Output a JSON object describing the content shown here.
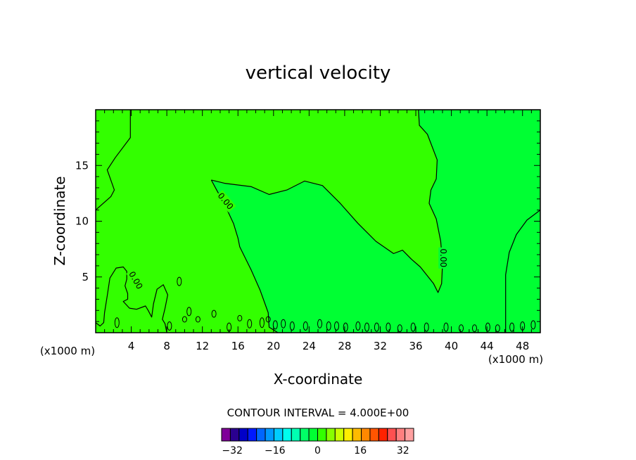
{
  "chart_data": {
    "type": "contour",
    "title": "vertical velocity",
    "xlabel": "X-coordinate",
    "ylabel": "Z-coordinate",
    "x_unit": "(x1000 m)",
    "y_unit": "(x1000 m)",
    "xlim": [
      0,
      50
    ],
    "ylim": [
      0,
      20
    ],
    "x_ticks": [
      4,
      8,
      12,
      16,
      20,
      24,
      28,
      32,
      36,
      40,
      44,
      48
    ],
    "y_ticks": [
      5,
      10,
      15
    ],
    "contour_interval_text": "CONTOUR INTERVAL = 4.000E+00",
    "contour_label": "0.00",
    "colorbar": {
      "min": -36,
      "max": 36,
      "step": 4,
      "tick_values": [
        -32,
        -16,
        0,
        16,
        32
      ],
      "tick_labels": [
        "−32",
        "−16",
        "0",
        "16",
        "32"
      ],
      "colors": [
        "#7f0099",
        "#2a008f",
        "#0000c8",
        "#0019ff",
        "#0066ff",
        "#0099ff",
        "#00ccff",
        "#00ffee",
        "#00ffb2",
        "#00ff66",
        "#00ff33",
        "#33ff00",
        "#88ff00",
        "#ccff00",
        "#ffee00",
        "#ffbb00",
        "#ff8800",
        "#ff5500",
        "#ff2200",
        "#ff5050",
        "#ff7f7f",
        "#ffa0a0"
      ]
    },
    "fill_colors": {
      "positive_small": "#33ff00",
      "negative_small": "#00ff33"
    },
    "zero_contours": [
      {
        "region": "negative",
        "points": [
          [
            13,
            13.7
          ],
          [
            14.5,
            13.4
          ],
          [
            17.5,
            13.1
          ],
          [
            19.5,
            12.4
          ],
          [
            21.5,
            12.8
          ],
          [
            23.5,
            13.6
          ],
          [
            25.5,
            13.2
          ],
          [
            27.5,
            11.6
          ],
          [
            29.5,
            9.8
          ],
          [
            31.5,
            8.2
          ],
          [
            33.5,
            7.1
          ],
          [
            34.5,
            7.4
          ],
          [
            35.5,
            6.6
          ],
          [
            36.5,
            5.9
          ],
          [
            38,
            4.4
          ],
          [
            38.5,
            3.6
          ],
          [
            38.9,
            4.4
          ],
          [
            39,
            6.2
          ],
          [
            38.8,
            8.2
          ],
          [
            38.3,
            10.2
          ],
          [
            37.5,
            11.6
          ],
          [
            37.7,
            12.8
          ],
          [
            38.3,
            13.8
          ],
          [
            38.4,
            15.5
          ],
          [
            37.3,
            17.8
          ],
          [
            36.4,
            18.6
          ],
          [
            36.3,
            20
          ],
          [
            50,
            20
          ],
          [
            50,
            0
          ],
          [
            40,
            0
          ],
          [
            30,
            0
          ],
          [
            20.5,
            0
          ],
          [
            19.5,
            0.5
          ],
          [
            19.4,
            1.8
          ],
          [
            18.5,
            3.8
          ],
          [
            17.5,
            5.6
          ],
          [
            16.2,
            7.7
          ],
          [
            16,
            8.5
          ],
          [
            15.5,
            9.8
          ],
          [
            14.5,
            11.5
          ],
          [
            13.6,
            12.8
          ],
          [
            13,
            13.7
          ]
        ]
      },
      {
        "region": "positive",
        "points": [
          [
            3.9,
            20
          ],
          [
            3.9,
            17.5
          ],
          [
            2.2,
            15.7
          ],
          [
            1.3,
            14.6
          ],
          [
            1.7,
            13.7
          ],
          [
            2.1,
            12.8
          ],
          [
            1.7,
            12.2
          ],
          [
            0,
            11
          ]
        ]
      },
      {
        "region": "positive",
        "points": [
          [
            50,
            11
          ],
          [
            48.5,
            10.1
          ],
          [
            47.3,
            8.8
          ],
          [
            46.5,
            7.2
          ],
          [
            46.1,
            5.2
          ],
          [
            46.1,
            2.6
          ],
          [
            46.1,
            0
          ]
        ]
      },
      {
        "region": "negative",
        "points": [
          [
            0,
            0.9
          ],
          [
            0.5,
            0.6
          ],
          [
            0.9,
            0.9
          ],
          [
            1,
            1.8
          ],
          [
            1.3,
            3.3
          ],
          [
            1.6,
            4.9
          ],
          [
            2.3,
            5.8
          ],
          [
            3.1,
            5.9
          ],
          [
            3.5,
            5.5
          ],
          [
            3.5,
            4.8
          ],
          [
            3.3,
            4.2
          ],
          [
            3.6,
            3.5
          ],
          [
            3.6,
            3
          ],
          [
            3.1,
            2.8
          ],
          [
            3.8,
            2.2
          ],
          [
            4.6,
            2.1
          ],
          [
            5.6,
            2.4
          ],
          [
            5.9,
            2
          ],
          [
            6.3,
            1.4
          ],
          [
            6.5,
            2.6
          ],
          [
            6.9,
            3.9
          ],
          [
            7.6,
            4.3
          ],
          [
            8.1,
            3.4
          ],
          [
            7.8,
            2.2
          ],
          [
            7.5,
            1.2
          ],
          [
            7.8,
            0.8
          ],
          [
            8,
            0
          ]
        ]
      }
    ],
    "small_cells": [
      [
        2.4,
        0.9
      ],
      [
        8.3,
        0.6
      ],
      [
        9.4,
        4.6
      ],
      [
        10,
        1.2
      ],
      [
        10.5,
        1.9
      ],
      [
        11.5,
        1.2
      ],
      [
        13.3,
        1.7
      ],
      [
        15,
        0.5
      ],
      [
        16.2,
        1.3
      ],
      [
        17.3,
        0.8
      ],
      [
        18.7,
        0.9
      ],
      [
        19.4,
        1.2
      ],
      [
        20.2,
        0.7
      ],
      [
        21.1,
        0.8
      ],
      [
        22.1,
        0.6
      ],
      [
        23.6,
        0.6
      ],
      [
        25.2,
        0.8
      ],
      [
        26.2,
        0.6
      ],
      [
        27.1,
        0.6
      ],
      [
        28.1,
        0.5
      ],
      [
        29.5,
        0.6
      ],
      [
        30.5,
        0.5
      ],
      [
        31.6,
        0.5
      ],
      [
        32.9,
        0.5
      ],
      [
        34.2,
        0.4
      ],
      [
        35.7,
        0.5
      ],
      [
        37.2,
        0.5
      ],
      [
        39.4,
        0.5
      ],
      [
        41.1,
        0.4
      ],
      [
        42.6,
        0.4
      ],
      [
        44.1,
        0.5
      ],
      [
        45.2,
        0.4
      ],
      [
        46.8,
        0.5
      ],
      [
        48,
        0.6
      ],
      [
        49.2,
        0.7
      ]
    ],
    "contour_label_positions": [
      {
        "x": 14.6,
        "z": 11.8,
        "angle": 50
      },
      {
        "x": 4.5,
        "z": 4.7,
        "angle": 60
      },
      {
        "x": 39.1,
        "z": 6.7,
        "angle": 90
      }
    ]
  }
}
